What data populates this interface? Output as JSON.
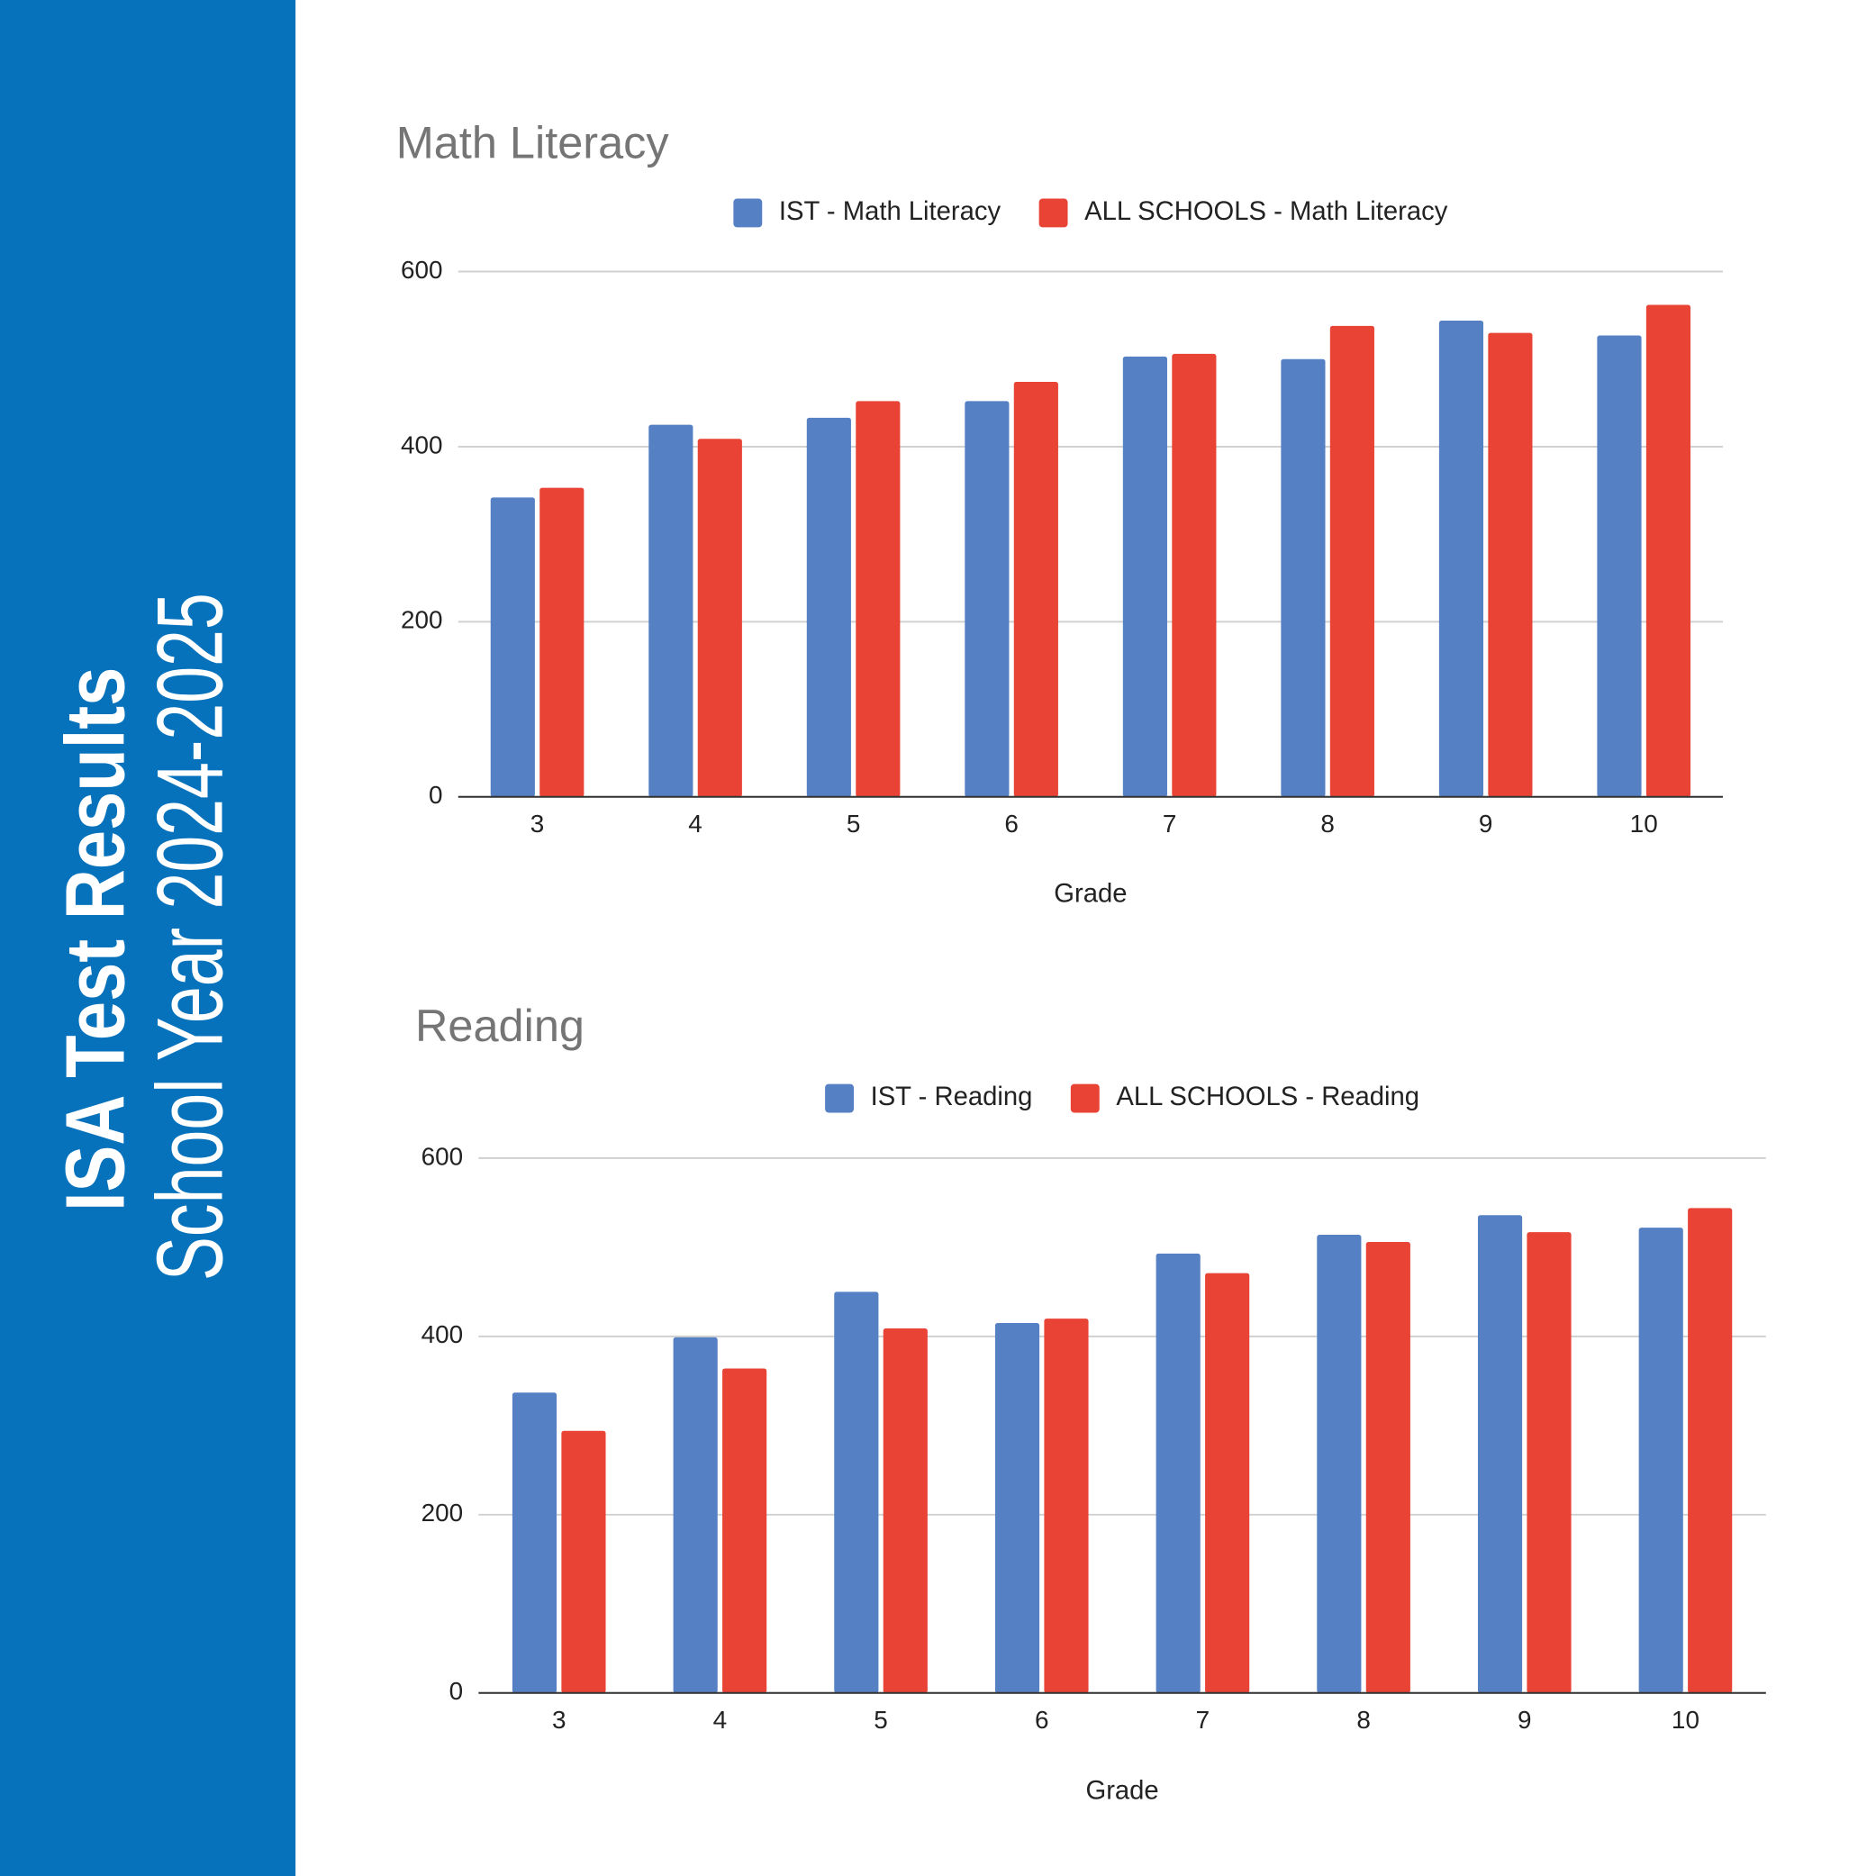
{
  "sidebar": {
    "title": "ISA Test Results",
    "subtitle": "School Year 2024-2025"
  },
  "chart_data": [
    {
      "type": "bar",
      "title": "Math Literacy",
      "x_label": "Grade",
      "categories": [
        "3",
        "4",
        "5",
        "6",
        "7",
        "8",
        "9",
        "10"
      ],
      "series": [
        {
          "name": "IST - Math Literacy",
          "color": "#5580c4",
          "values": [
            342,
            425,
            433,
            452,
            503,
            500,
            544,
            527
          ]
        },
        {
          "name": "ALL SCHOOLS - Math Literacy",
          "color": "#e94335",
          "values": [
            353,
            409,
            452,
            474,
            506,
            538,
            530,
            562
          ]
        }
      ],
      "ylim": [
        0,
        600
      ],
      "yticks": [
        0,
        200,
        400,
        600
      ],
      "grid": true,
      "legend": "top"
    },
    {
      "type": "bar",
      "title": "Reading",
      "x_label": "Grade",
      "categories": [
        "3",
        "4",
        "5",
        "6",
        "7",
        "8",
        "9",
        "10"
      ],
      "series": [
        {
          "name": "IST - Reading",
          "color": "#5580c4",
          "values": [
            337,
            399,
            450,
            415,
            493,
            514,
            536,
            522
          ]
        },
        {
          "name": "ALL SCHOOLS - Reading",
          "color": "#e94335",
          "values": [
            294,
            364,
            409,
            420,
            471,
            506,
            517,
            544
          ]
        }
      ],
      "ylim": [
        0,
        600
      ],
      "yticks": [
        0,
        200,
        400,
        600
      ],
      "grid": true,
      "legend": "top"
    }
  ]
}
